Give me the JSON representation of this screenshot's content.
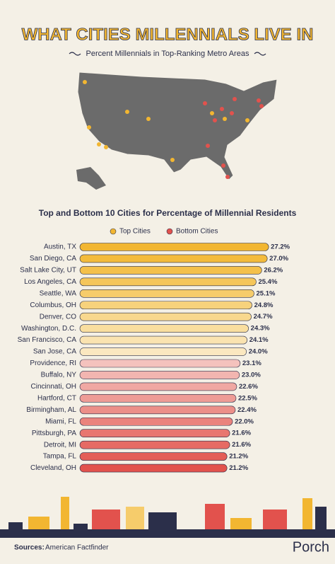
{
  "header": {
    "title": "WHAT CITIES MILLENNIALS LIVE IN",
    "subtitle": "Percent Millennials in Top-Ranking Metro Areas"
  },
  "chart_data": {
    "type": "bar",
    "orientation": "horizontal",
    "title": "Top and Bottom 10 Cities for Percentage of Millennial Residents",
    "legend": [
      {
        "label": "Top Cities",
        "color": "#f2b631"
      },
      {
        "label": "Bottom Cities",
        "color": "#e2524d"
      }
    ],
    "categories": [
      "Austin, TX",
      "San Diego, CA",
      "Salt Lake City, UT",
      "Los Angeles, CA",
      "Seattle, WA",
      "Columbus, OH",
      "Denver, CO",
      "Washington, D.C.",
      "San Francisco, CA",
      "San Jose, CA",
      "Providence, RI",
      "Buffalo, NY",
      "Cincinnati, OH",
      "Hartford, CT",
      "Birmingham, AL",
      "Miami, FL",
      "Pittsburgh, PA",
      "Detroit, MI",
      "Tampa, FL",
      "Cleveland, OH"
    ],
    "values": [
      27.2,
      27.0,
      26.2,
      25.4,
      25.1,
      24.8,
      24.7,
      24.3,
      24.1,
      24.0,
      23.1,
      23.0,
      22.6,
      22.5,
      22.4,
      22.0,
      21.6,
      21.6,
      21.2,
      21.2
    ],
    "value_labels": [
      "27.2%",
      "27.0%",
      "26.2%",
      "25.4%",
      "25.1%",
      "24.8%",
      "24.7%",
      "24.3%",
      "24.1%",
      "24.0%",
      "23.1%",
      "23.0%",
      "22.6%",
      "22.5%",
      "22.4%",
      "22.0%",
      "21.6%",
      "21.6%",
      "21.2%",
      "21.2%"
    ],
    "colors": [
      "#f2b631",
      "#f3bb3c",
      "#f4c04a",
      "#f5c65a",
      "#f6cc6b",
      "#f7d27c",
      "#f8d88e",
      "#f9de9f",
      "#fae3b0",
      "#fbe8c0",
      "#f4c2bd",
      "#f2b5b0",
      "#f0a8a3",
      "#ee9c96",
      "#ec8f89",
      "#ea837d",
      "#e87670",
      "#e66a64",
      "#e45e58",
      "#e2524d"
    ],
    "xlim": [
      0,
      28
    ]
  },
  "footer": {
    "sources_label": "Sources:",
    "sources": "American Factfinder",
    "brand": "Porch"
  }
}
